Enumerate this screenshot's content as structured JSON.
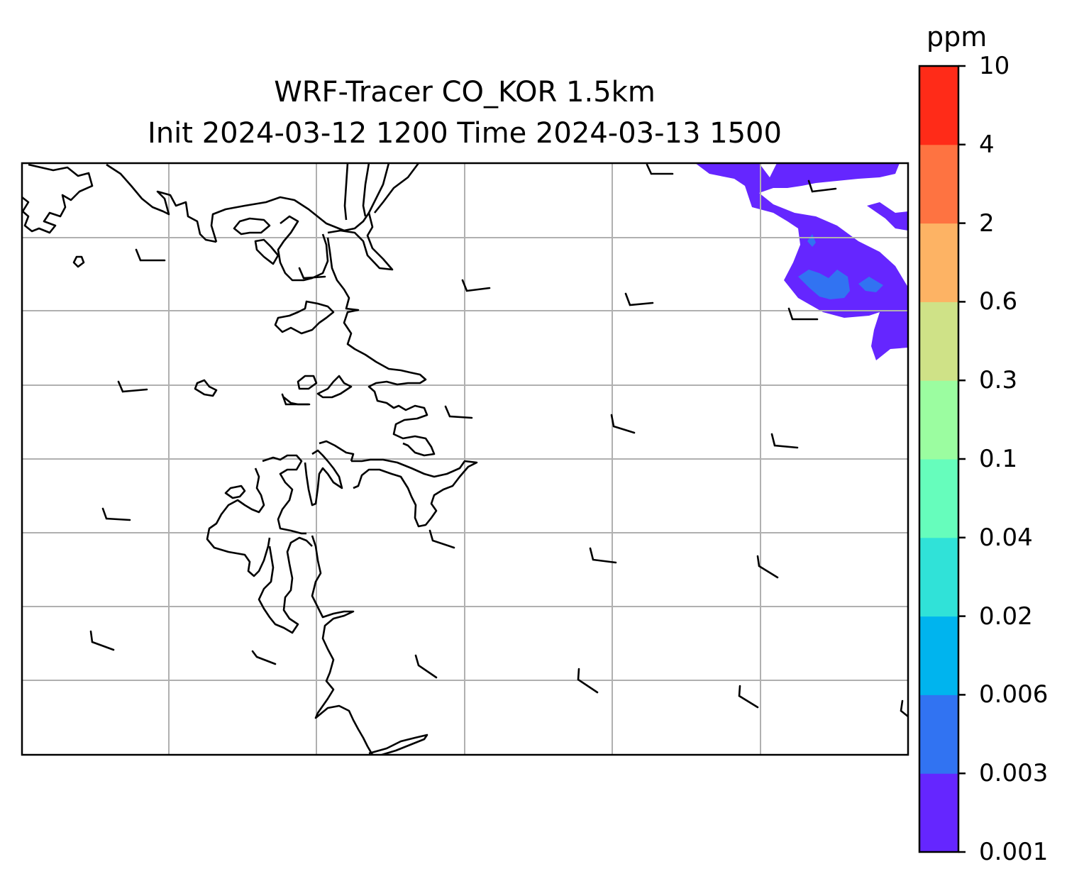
{
  "title_line1": "WRF-Tracer CO_KOR 1.5km",
  "title_line2": "Init 2024-03-12 1200 Time 2024-03-13 1500",
  "colorbar": {
    "unit": "ppm",
    "ticks": [
      "0.001",
      "0.003",
      "0.006",
      "0.02",
      "0.04",
      "0.1",
      "0.3",
      "0.6",
      "2",
      "4",
      "10"
    ],
    "colors": [
      "#6526ff",
      "#3173f2",
      "#00b4ee",
      "#30e2d8",
      "#66fdbc",
      "#9bfda0",
      "#cfe287",
      "#fdb364",
      "#fe7341",
      "#ff2b18"
    ]
  },
  "map": {
    "gridlines": true,
    "coastline_color": "#000000",
    "grid_color": "#b0b0b0",
    "tracer_levels_shown": [
      "0.001",
      "0.003"
    ]
  }
}
